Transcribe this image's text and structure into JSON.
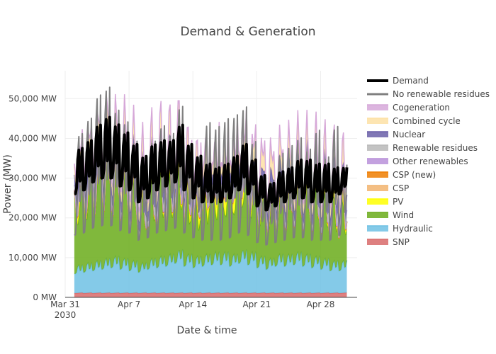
{
  "chart_data": {
    "type": "area",
    "title": "Demand & Generation",
    "xlabel": "Date & time",
    "ylabel": "Power (MW)",
    "x_range": [
      "2030-03-31",
      "2030-05-02"
    ],
    "ylim": [
      0,
      57000
    ],
    "y_ticks": [
      {
        "value": 0,
        "label": "0 MW"
      },
      {
        "value": 10000,
        "label": "10,000 MW"
      },
      {
        "value": 20000,
        "label": "20,000 MW"
      },
      {
        "value": 30000,
        "label": "30,000 MW"
      },
      {
        "value": 40000,
        "label": "40,000 MW"
      },
      {
        "value": 50000,
        "label": "50,000 MW"
      }
    ],
    "x_ticks": [
      {
        "date": "2030-03-31",
        "label": "Mar 31",
        "sublabel": "2030"
      },
      {
        "date": "2030-04-07",
        "label": "Apr 7",
        "sublabel": ""
      },
      {
        "date": "2030-04-14",
        "label": "Apr 14",
        "sublabel": ""
      },
      {
        "date": "2030-04-21",
        "label": "Apr 21",
        "sublabel": ""
      },
      {
        "date": "2030-04-28",
        "label": "Apr 28",
        "sublabel": ""
      }
    ],
    "grid": true,
    "legend_position": "right",
    "days": [
      "2030-04-01",
      "2030-04-02",
      "2030-04-03",
      "2030-04-04",
      "2030-04-05",
      "2030-04-06",
      "2030-04-07",
      "2030-04-08",
      "2030-04-09",
      "2030-04-10",
      "2030-04-11",
      "2030-04-12",
      "2030-04-13",
      "2030-04-14",
      "2030-04-15",
      "2030-04-16",
      "2030-04-17",
      "2030-04-18",
      "2030-04-19",
      "2030-04-20",
      "2030-04-21",
      "2030-04-22",
      "2030-04-23",
      "2030-04-24",
      "2030-04-25",
      "2030-04-26",
      "2030-04-27",
      "2030-04-28",
      "2030-04-29",
      "2030-04-30"
    ],
    "daily_profile": {
      "demand_peak_mw": [
        38000,
        40000,
        44000,
        46000,
        44000,
        42000,
        39000,
        36000,
        39000,
        40000,
        40000,
        44000,
        39000,
        36000,
        34000,
        33000,
        34000,
        36000,
        39000,
        35000,
        31000,
        29000,
        32000,
        33000,
        35000,
        35000,
        34000,
        34000,
        33000,
        33000
      ],
      "demand_trough_mw": [
        26000,
        27000,
        29000,
        30000,
        30000,
        28000,
        27000,
        24000,
        25000,
        27000,
        28000,
        29000,
        27000,
        25000,
        24000,
        24000,
        24000,
        25000,
        27000,
        26000,
        23000,
        22000,
        23000,
        24000,
        25000,
        25000,
        24000,
        24000,
        24000,
        26000
      ],
      "no_renewable_residues_peak_mw": [
        42000,
        46000,
        52000,
        54000,
        48000,
        45000,
        40000,
        35000,
        40000,
        44000,
        42000,
        49000,
        38000,
        34000,
        45000,
        44000,
        46000,
        47000,
        49000,
        40000,
        30000,
        30000,
        37000,
        39000,
        41000,
        38000,
        43000,
        36000,
        44000,
        34000
      ],
      "wind_peak_mw": [
        21000,
        23000,
        26000,
        28000,
        25000,
        24000,
        21000,
        17000,
        20000,
        22000,
        22000,
        24000,
        19000,
        17000,
        19000,
        19000,
        19000,
        20000,
        22000,
        19000,
        17000,
        16000,
        17000,
        17000,
        18000,
        18000,
        18000,
        17000,
        17000,
        16000
      ],
      "hydraulic_mw": [
        6500,
        7000,
        7500,
        8000,
        8500,
        8000,
        7500,
        7000,
        8000,
        8500,
        9000,
        10000,
        9000,
        8500,
        9000,
        9500,
        9500,
        9000,
        10000,
        9500,
        8500,
        8000,
        9000,
        9000,
        9500,
        9000,
        8500,
        8000,
        7500,
        7500
      ],
      "snp_mw": [
        1200,
        1200,
        1200,
        1200,
        1200,
        1200,
        1200,
        1200,
        1200,
        1200,
        1200,
        1200,
        1200,
        1200,
        1200,
        1200,
        1200,
        1200,
        1200,
        1200,
        1200,
        1200,
        1200,
        1200,
        1200,
        1200,
        1200,
        1200,
        1200,
        1200
      ]
    },
    "series": [
      {
        "name": "Demand",
        "color": "#000000",
        "kind": "line"
      },
      {
        "name": "No renewable residues",
        "color": "#7f7f7f",
        "kind": "line"
      },
      {
        "name": "Cogeneration",
        "color": "#d6a8d9",
        "kind": "area"
      },
      {
        "name": "Combined cycle",
        "color": "#fde1a4",
        "kind": "area"
      },
      {
        "name": "Nuclear",
        "color": "#6a5fa8",
        "kind": "area"
      },
      {
        "name": "Renewable residues",
        "color": "#b9b9b9",
        "kind": "area"
      },
      {
        "name": "Other renewables",
        "color": "#b891d9",
        "kind": "area"
      },
      {
        "name": "CSP (new)",
        "color": "#ef7d00",
        "kind": "area"
      },
      {
        "name": "CSP",
        "color": "#f2b46e",
        "kind": "area"
      },
      {
        "name": "PV",
        "color": "#ffff00",
        "kind": "area"
      },
      {
        "name": "Wind",
        "color": "#6aab1a",
        "kind": "area"
      },
      {
        "name": "Hydraulic",
        "color": "#6ec1e4",
        "kind": "area"
      },
      {
        "name": "SNP",
        "color": "#d86a6a",
        "kind": "area"
      }
    ]
  }
}
